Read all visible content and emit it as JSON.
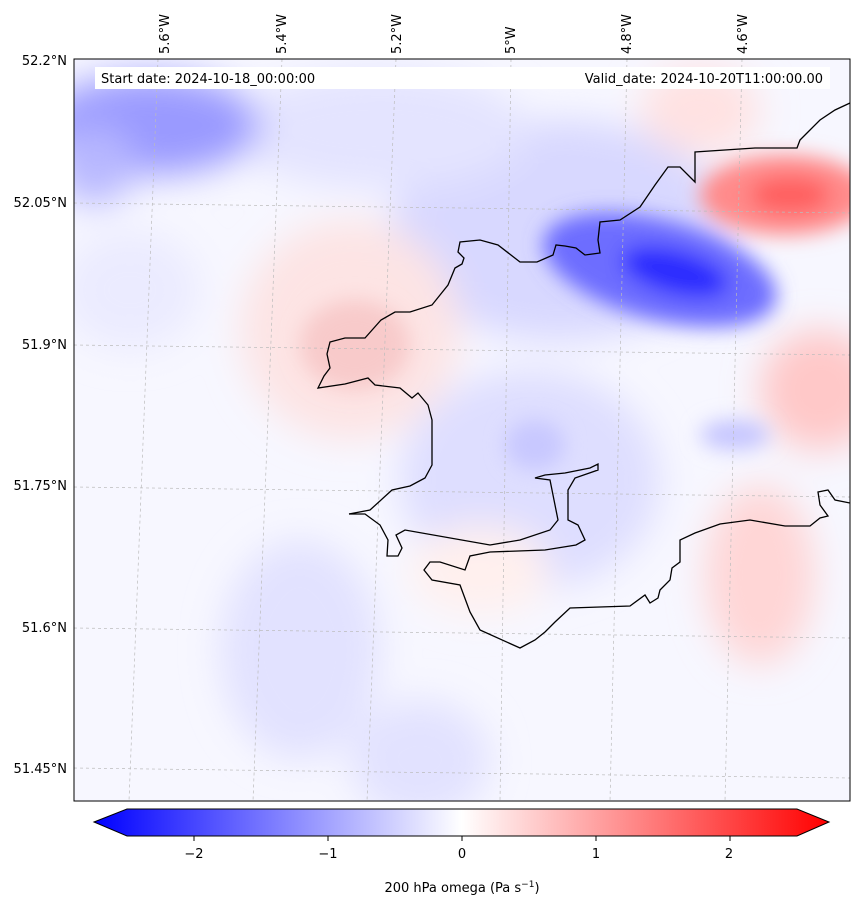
{
  "header": {
    "start_date": "Start date: 2024-10-18_00:00:00",
    "valid_date": "Valid_date: 2024-10-20T11:00:00.00"
  },
  "lon_ticks": [
    "5.6°W",
    "5.4°W",
    "5.2°W",
    "5°W",
    "4.8°W",
    "4.6°W"
  ],
  "lat_ticks": [
    "52.2°N",
    "52.05°N",
    "51.9°N",
    "51.75°N",
    "51.6°N",
    "51.45°N"
  ],
  "colorbar": {
    "label": "200 hPa omega (Pa s",
    "label_sup": "−1",
    "label_end": ")",
    "ticks": [
      "−2",
      "−1",
      "0",
      "1",
      "2"
    ],
    "min": -2.5,
    "max": 2.5,
    "colormap": "bwr",
    "low_color": "#0000ff",
    "mid_color": "#ffffff",
    "high_color": "#ff0000"
  },
  "colors": {
    "coastline": "#000000",
    "gridline": "#bbbbbb"
  }
}
